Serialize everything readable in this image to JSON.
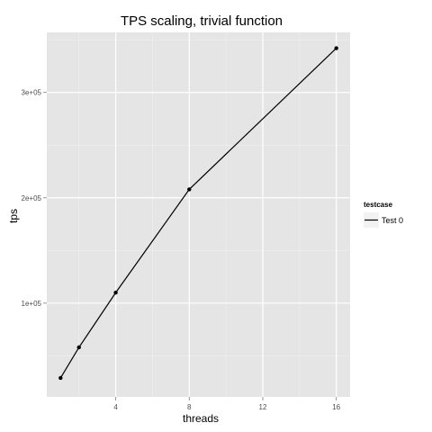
{
  "chart_data": {
    "type": "line",
    "title": "TPS scaling, trivial function",
    "xlabel": "threads",
    "ylabel": "tps",
    "x_ticks": [
      4,
      8,
      12,
      16
    ],
    "x_tick_labels": [
      "4",
      "8",
      "12",
      "16"
    ],
    "y_ticks": [
      100000,
      200000,
      300000
    ],
    "y_tick_labels": [
      "1e+05",
      "2e+05",
      "3e+05"
    ],
    "xlim": [
      0.25,
      16.75
    ],
    "ylim": [
      11000,
      357000
    ],
    "grid": true,
    "legend": {
      "title": "testcase",
      "position": "right"
    },
    "series": [
      {
        "name": "Test 0",
        "color": "#000000",
        "x": [
          1,
          2,
          4,
          8,
          16
        ],
        "y": [
          29000,
          58000,
          110000,
          208000,
          342000
        ]
      }
    ]
  }
}
